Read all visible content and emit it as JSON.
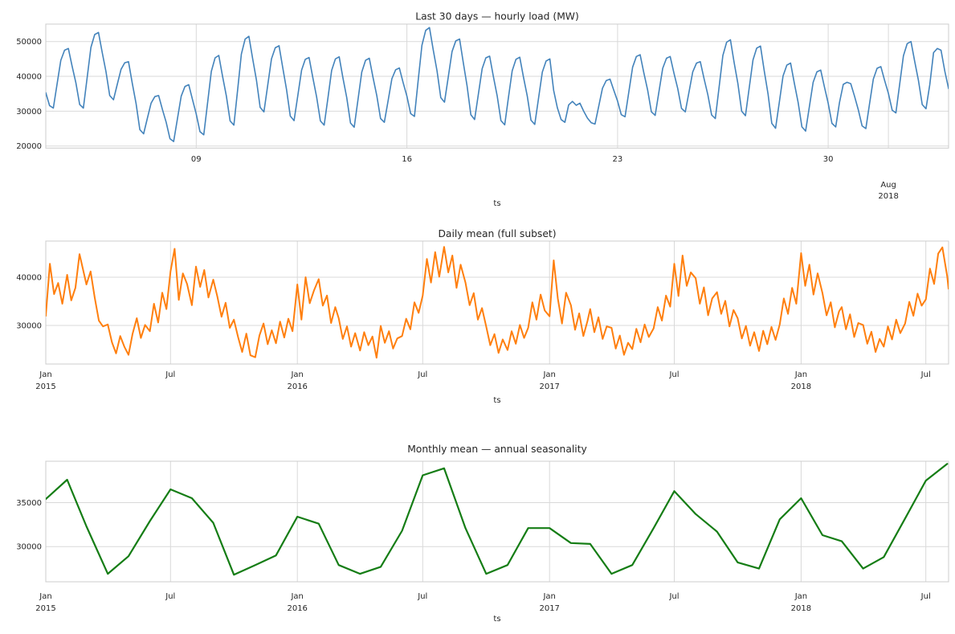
{
  "figure": {
    "background": "#ffffff",
    "text_color": "#262626",
    "grid_color": "#d9d9d9",
    "spine_color": "#cccccc"
  },
  "calendar": {
    "month_start_days": [
      0,
      31,
      59,
      90,
      120,
      151,
      181,
      212,
      243,
      273,
      304,
      334,
      365,
      396,
      425,
      456,
      486,
      517,
      547,
      578,
      609,
      639,
      670,
      700,
      731,
      762,
      790,
      821,
      851,
      882,
      912,
      943,
      974,
      1004,
      1035,
      1065,
      1096,
      1127,
      1155,
      1186,
      1216,
      1247,
      1277,
      1308
    ]
  },
  "chart_data": [
    {
      "type": "line",
      "title": "Last 30 days — hourly load (MW)",
      "xlabel": "ts",
      "color": "#4383bb",
      "linewidth": 1.6,
      "x_start": "2018-07-04 00:00",
      "x_step_hours": 3,
      "x_span_days": 30,
      "ylim": [
        19400,
        55000
      ],
      "grid": true,
      "legend": "none",
      "yticks": [
        {
          "v": 20000,
          "label": "20000"
        },
        {
          "v": 30000,
          "label": "30000"
        },
        {
          "v": 40000,
          "label": "40000"
        },
        {
          "v": 50000,
          "label": "50000"
        }
      ],
      "xticks": [
        {
          "day": 5,
          "label": "09"
        },
        {
          "day": 12,
          "label": "16"
        },
        {
          "day": 19,
          "label": "23"
        },
        {
          "day": 26,
          "label": "30"
        },
        {
          "day": 28,
          "label": "Aug",
          "label2": "2018"
        }
      ],
      "values": [
        35300,
        31600,
        30900,
        37700,
        44600,
        47500,
        48000,
        42900,
        38100,
        31900,
        30900,
        39600,
        48300,
        52000,
        52600,
        46800,
        41400,
        34500,
        33300,
        37700,
        42000,
        43900,
        44200,
        38000,
        32200,
        24700,
        23500,
        27900,
        32300,
        34200,
        34500,
        30500,
        26800,
        22100,
        21300,
        27800,
        34300,
        37100,
        37600,
        33300,
        29200,
        24100,
        23200,
        32300,
        41400,
        45300,
        46000,
        40000,
        34400,
        27200,
        26000,
        36200,
        46400,
        50700,
        51500,
        45000,
        38900,
        31100,
        29800,
        37400,
        45000,
        48200,
        48800,
        42400,
        36300,
        28600,
        27300,
        34500,
        41800,
        44900,
        45400,
        39600,
        34100,
        27200,
        26000,
        33800,
        41700,
        45000,
        45600,
        39500,
        33900,
        26600,
        25400,
        33300,
        41200,
        44600,
        45200,
        39700,
        34500,
        27900,
        26800,
        33000,
        39300,
        41900,
        42400,
        38200,
        34300,
        29300,
        28500,
        38700,
        48900,
        53200,
        54000,
        47600,
        41600,
        33900,
        32600,
        39800,
        47100,
        50200,
        50700,
        43800,
        37300,
        29000,
        27600,
        34900,
        42200,
        45300,
        45800,
        39900,
        34400,
        27300,
        26100,
        33900,
        41600,
        44900,
        45500,
        39700,
        34300,
        27400,
        26200,
        33700,
        41200,
        44400,
        45000,
        36000,
        31000,
        27600,
        26800,
        31800,
        32800,
        31700,
        32300,
        30000,
        28000,
        26700,
        26300,
        31500,
        36600,
        38800,
        39200,
        36000,
        32900,
        29000,
        28400,
        35500,
        42600,
        45700,
        46200,
        41000,
        36100,
        29800,
        28800,
        35600,
        42300,
        45200,
        45700,
        40900,
        36500,
        30800,
        29800,
        35600,
        41300,
        43800,
        44200,
        39300,
        34700,
        28900,
        27900,
        36900,
        46000,
        49800,
        50500,
        44000,
        37900,
        30000,
        28700,
        36700,
        44700,
        48100,
        48700,
        41600,
        35000,
        26500,
        25100,
        32600,
        40100,
        43200,
        43800,
        38000,
        32500,
        25500,
        24300,
        31300,
        38300,
        41300,
        41800,
        36900,
        32300,
        26500,
        25500,
        32500,
        37700,
        38300,
        37900,
        34300,
        30400,
        25800,
        25000,
        32100,
        39200,
        42300,
        42800,
        38800,
        35100,
        30300,
        29500,
        37700,
        45900,
        49400,
        50000,
        44200,
        38800,
        31900,
        30700,
        37600,
        46800,
        48000,
        47500,
        41500,
        36500
      ]
    },
    {
      "type": "line",
      "title": "Daily mean (full subset)",
      "xlabel": "ts",
      "color": "#ff7f0e",
      "linewidth": 2,
      "x_mode": "monthly_offsets",
      "day_offsets": [
        0,
        6,
        12,
        18,
        24
      ],
      "x_span_days": 1310,
      "ylim": [
        22000,
        47500
      ],
      "grid": true,
      "legend": "none",
      "yticks": [
        {
          "v": 30000,
          "label": "30000"
        },
        {
          "v": 40000,
          "label": "40000"
        }
      ],
      "xticks": [
        {
          "day": 0,
          "label": "Jan",
          "label2": "2015"
        },
        {
          "day": 181,
          "label": "Jul"
        },
        {
          "day": 365,
          "label": "Jan",
          "label2": "2016"
        },
        {
          "day": 547,
          "label": "Jul"
        },
        {
          "day": 731,
          "label": "Jan",
          "label2": "2017"
        },
        {
          "day": 912,
          "label": "Jul"
        },
        {
          "day": 1096,
          "label": "Jan",
          "label2": "2018"
        },
        {
          "day": 1277,
          "label": "Jul"
        }
      ],
      "values": [
        32000,
        42800,
        36500,
        38800,
        34500,
        40500,
        35200,
        37800,
        44800,
        41000,
        38500,
        41200,
        35800,
        31000,
        29800,
        30200,
        26500,
        24200,
        27800,
        25600,
        23900,
        28300,
        31500,
        27400,
        30100,
        28800,
        34500,
        30600,
        36800,
        33400,
        41200,
        45900,
        35300,
        40800,
        38600,
        34200,
        42200,
        38000,
        41500,
        35800,
        39500,
        36000,
        31800,
        34700,
        29500,
        31200,
        27600,
        24500,
        28300,
        23800,
        23400,
        27900,
        30400,
        26100,
        29000,
        26300,
        30800,
        27500,
        31400,
        28800,
        38500,
        31200,
        40000,
        34600,
        37200,
        39600,
        34100,
        36200,
        30500,
        33800,
        31500,
        27200,
        29800,
        25600,
        28400,
        24800,
        28600,
        25900,
        27700,
        23300,
        29900,
        26400,
        28800,
        25200,
        27300,
        27800,
        31400,
        29200,
        34800,
        32600,
        36200,
        43800,
        38900,
        45200,
        40100,
        46300,
        41000,
        44500,
        37800,
        42600,
        38900,
        34200,
        36700,
        31200,
        33600,
        29800,
        25900,
        28200,
        24300,
        27100,
        24900,
        28800,
        26200,
        30100,
        27400,
        29500,
        34800,
        31200,
        36400,
        33100,
        31900,
        43500,
        35600,
        30400,
        36800,
        34200,
        29100,
        32500,
        27800,
        30900,
        33400,
        28600,
        31700,
        27200,
        29800,
        29500,
        25200,
        27900,
        23900,
        26400,
        25100,
        29300,
        26500,
        30200,
        27600,
        29400,
        33800,
        31000,
        36200,
        33900,
        42800,
        36100,
        44500,
        38200,
        41000,
        39800,
        34500,
        37900,
        32100,
        35600,
        36900,
        32400,
        35100,
        29800,
        33200,
        31500,
        27300,
        29900,
        25800,
        28600,
        24700,
        28900,
        26100,
        29700,
        27000,
        30200,
        35600,
        32400,
        37800,
        34500,
        45000,
        38200,
        42600,
        36400,
        40800,
        36700,
        32100,
        34800,
        29600,
        32900,
        33800,
        29200,
        32300,
        27600,
        30500,
        30100,
        26200,
        28700,
        24500,
        27200,
        25600,
        29800,
        27100,
        31200,
        28400,
        30400,
        34900,
        32000,
        36600,
        34100,
        35400,
        41800,
        38600,
        44900,
        46200,
        40200,
        37600
      ]
    },
    {
      "type": "line",
      "title": "Monthly mean — annual seasonality",
      "xlabel": "ts",
      "color": "#157d15",
      "linewidth": 2.2,
      "x_mode": "monthly",
      "x_span_days": 1310,
      "ylim": [
        26000,
        39700
      ],
      "grid": true,
      "legend": "none",
      "yticks": [
        {
          "v": 30000,
          "label": "30000"
        },
        {
          "v": 35000,
          "label": "35000"
        }
      ],
      "xticks": [
        {
          "day": 0,
          "label": "Jan",
          "label2": "2015"
        },
        {
          "day": 181,
          "label": "Jul"
        },
        {
          "day": 365,
          "label": "Jan",
          "label2": "2016"
        },
        {
          "day": 547,
          "label": "Jul"
        },
        {
          "day": 731,
          "label": "Jan",
          "label2": "2017"
        },
        {
          "day": 912,
          "label": "Jul"
        },
        {
          "day": 1096,
          "label": "Jan",
          "label2": "2018"
        },
        {
          "day": 1277,
          "label": "Jul"
        }
      ],
      "categories": [
        "2015-01",
        "2015-02",
        "2015-03",
        "2015-04",
        "2015-05",
        "2015-06",
        "2015-07",
        "2015-08",
        "2015-09",
        "2015-10",
        "2015-11",
        "2015-12",
        "2016-01",
        "2016-02",
        "2016-03",
        "2016-04",
        "2016-05",
        "2016-06",
        "2016-07",
        "2016-08",
        "2016-09",
        "2016-10",
        "2016-11",
        "2016-12",
        "2017-01",
        "2017-02",
        "2017-03",
        "2017-04",
        "2017-05",
        "2017-06",
        "2017-07",
        "2017-08",
        "2017-09",
        "2017-10",
        "2017-11",
        "2017-12",
        "2018-01",
        "2018-02",
        "2018-03",
        "2018-04",
        "2018-05",
        "2018-06",
        "2018-07",
        "2018-08"
      ],
      "values": [
        35400,
        37600,
        32300,
        26900,
        28900,
        32900,
        36500,
        35500,
        32700,
        26800,
        27900,
        29000,
        33400,
        32600,
        27900,
        26900,
        27700,
        31800,
        38100,
        38900,
        32100,
        26900,
        27900,
        32100,
        32100,
        30400,
        30300,
        26900,
        27900,
        32100,
        36300,
        33700,
        31700,
        28200,
        27500,
        33100,
        35500,
        31300,
        30600,
        27500,
        28800,
        33200,
        37500,
        39400
      ]
    }
  ]
}
